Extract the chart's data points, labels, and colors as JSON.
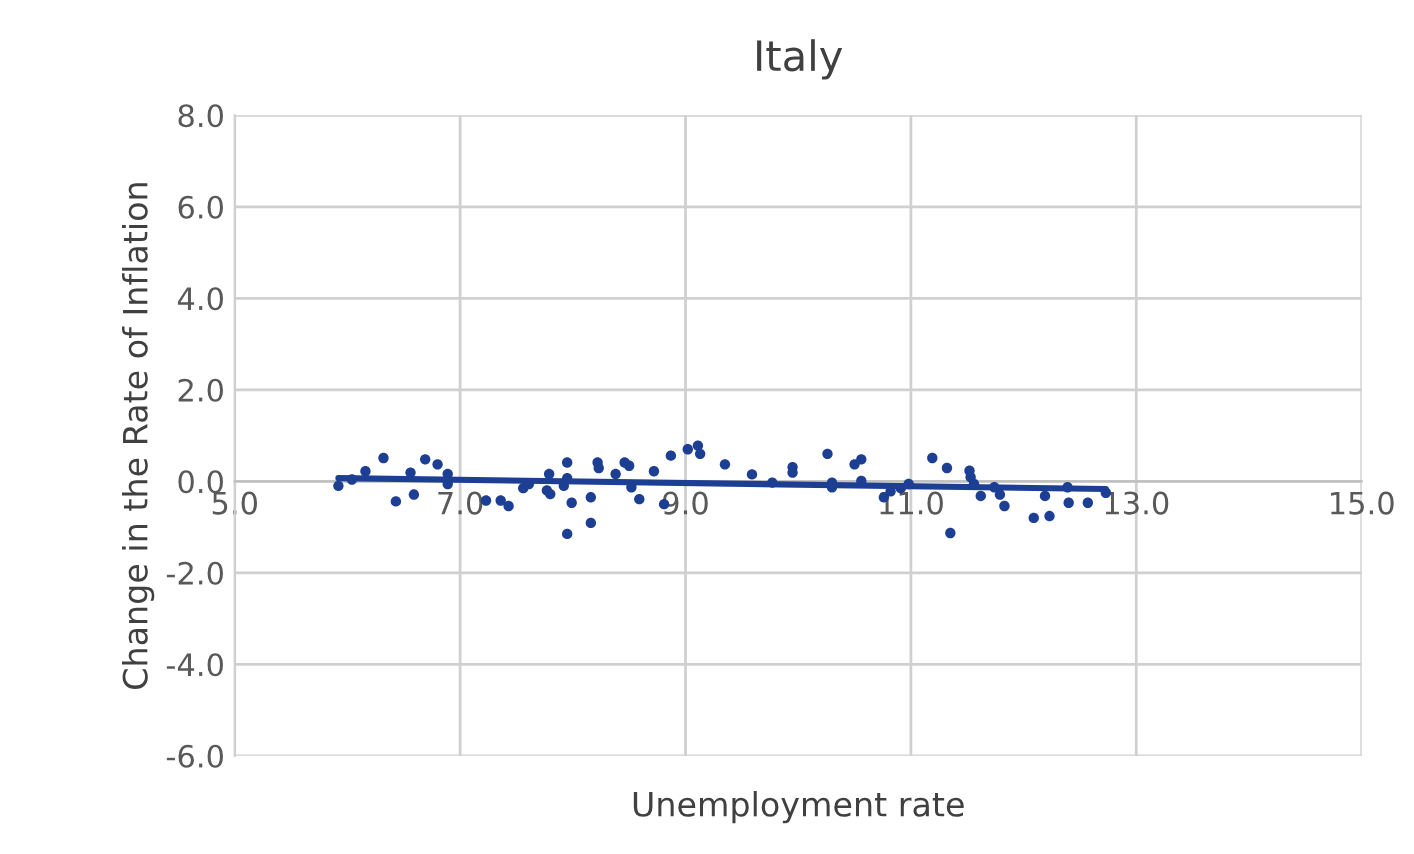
{
  "chart_data": {
    "type": "scatter",
    "title": "Italy",
    "xlabel": "Unemployment rate",
    "ylabel": "Change in the Rate of Inflation",
    "xlim": [
      5,
      15
    ],
    "xticks": [
      {
        "value": 5,
        "label": "5.0"
      },
      {
        "value": 7,
        "label": "7.0"
      },
      {
        "value": 9,
        "label": "9.0"
      },
      {
        "value": 11,
        "label": "11.0"
      },
      {
        "value": 13,
        "label": "13.0"
      },
      {
        "value": 15,
        "label": "15.0"
      }
    ],
    "ylim": [
      -6,
      8
    ],
    "yticks": [
      {
        "value": -6,
        "label": "-6.0"
      },
      {
        "value": -4,
        "label": "-4.0"
      },
      {
        "value": -2,
        "label": "-2.0"
      },
      {
        "value": 0,
        "label": "0.0"
      },
      {
        "value": 2,
        "label": "2.0"
      },
      {
        "value": 4,
        "label": "4.0"
      },
      {
        "value": 6,
        "label": "6.0"
      },
      {
        "value": 8,
        "label": "8.0"
      }
    ],
    "grid": true,
    "legend": false,
    "marker": "circle",
    "series": [
      {
        "color": "#1c3f94",
        "x": [
          5.92,
          6.04,
          6.16,
          6.32,
          6.43,
          6.56,
          6.59,
          6.69,
          6.8,
          6.89,
          6.89,
          7.23,
          7.36,
          7.43,
          7.56,
          7.61,
          7.79,
          7.77,
          7.8,
          7.95,
          7.92,
          7.95,
          7.99,
          7.95,
          8.16,
          8.16,
          8.22,
          8.23,
          8.38,
          8.46,
          8.5,
          8.52,
          8.59,
          8.72,
          8.81,
          8.87,
          9.02,
          9.11,
          9.13,
          9.35,
          9.59,
          9.77,
          9.95,
          9.95,
          10.26,
          10.3,
          10.3,
          10.5,
          10.56,
          10.56,
          10.76,
          10.82,
          10.91,
          10.98,
          11.19,
          11.32,
          11.35,
          11.52,
          11.53,
          11.56,
          11.62,
          11.74,
          11.79,
          11.83,
          12.09,
          12.19,
          12.23,
          12.39,
          12.4,
          12.57,
          12.73
        ],
        "values": [
          -0.1,
          0.04,
          0.22,
          0.51,
          -0.44,
          0.19,
          -0.29,
          0.48,
          0.37,
          0.16,
          -0.06,
          -0.42,
          -0.42,
          -0.54,
          -0.15,
          -0.06,
          0.16,
          -0.2,
          -0.28,
          0.41,
          -0.1,
          0.07,
          -0.47,
          -1.15,
          -0.35,
          -0.91,
          0.41,
          0.29,
          0.16,
          0.41,
          0.34,
          -0.13,
          -0.39,
          0.22,
          -0.5,
          0.56,
          0.7,
          0.78,
          0.6,
          0.37,
          0.15,
          -0.03,
          0.31,
          0.19,
          0.6,
          -0.03,
          -0.13,
          0.37,
          0.48,
          0.01,
          -0.35,
          -0.22,
          -0.15,
          -0.06,
          0.51,
          0.29,
          -1.13,
          0.23,
          0.09,
          -0.06,
          -0.32,
          -0.13,
          -0.29,
          -0.54,
          -0.8,
          -0.32,
          -0.76,
          -0.13,
          -0.47,
          -0.47,
          -0.25
        ]
      },
      {
        "type": "line",
        "color": "#1c3f94",
        "marker": "none",
        "line_style": "solid",
        "x": [
          5.92,
          12.73
        ],
        "values": [
          0.07,
          -0.17
        ]
      }
    ]
  }
}
